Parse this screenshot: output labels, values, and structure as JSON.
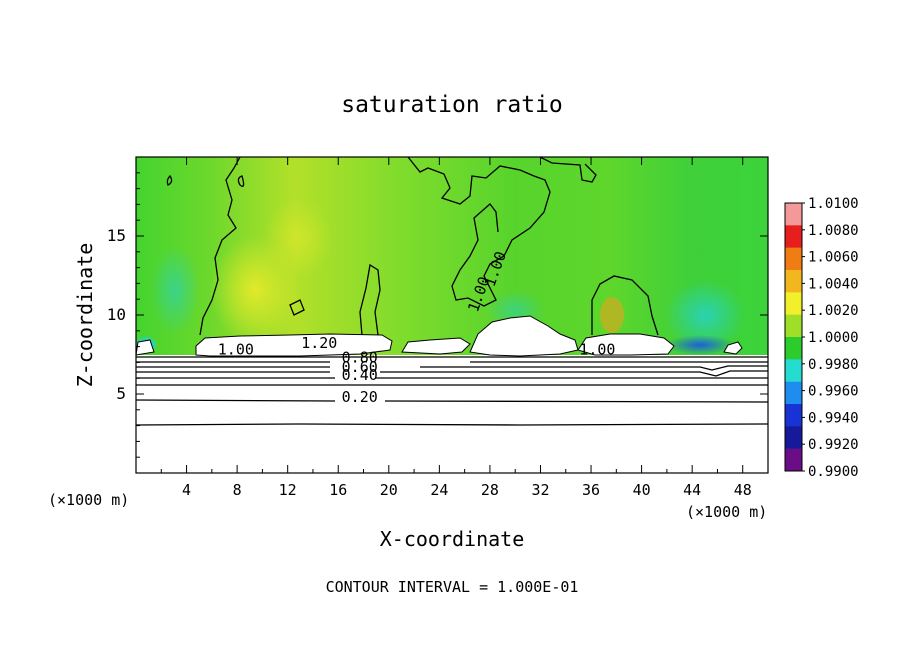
{
  "chart_data": {
    "type": "heatmap",
    "title": "saturation ratio",
    "xlabel": "X-coordinate",
    "ylabel": "Z-coordinate",
    "x_unit": "(×1000 m)",
    "x_unit_right": "(×1000 m)",
    "xlim": [
      0,
      50
    ],
    "ylim": [
      0,
      20
    ],
    "x_ticks": [
      4,
      8,
      12,
      16,
      20,
      24,
      28,
      32,
      36,
      40,
      44,
      48
    ],
    "y_ticks": [
      5,
      10,
      15
    ],
    "colorbar": {
      "labels": [
        "1.0100",
        "1.0080",
        "1.0060",
        "1.0040",
        "1.0020",
        "1.0000",
        "0.9980",
        "0.9960",
        "0.9940",
        "0.9920",
        "0.9900"
      ],
      "colors": [
        "#f4999a",
        "#e61e1e",
        "#f07d14",
        "#f2b71e",
        "#f2f02a",
        "#9fdf28",
        "#2bcc2b",
        "#24dcd0",
        "#1f8df0",
        "#1832d6",
        "#161a9a",
        "#6b0d86"
      ]
    },
    "contour_labels": [
      {
        "text": "1.00",
        "x": 7.9,
        "z": 7.5
      },
      {
        "text": "1.20",
        "x": 14.5,
        "z": 7.9
      },
      {
        "text": "0.80",
        "x": 17.7,
        "z": 7.0
      },
      {
        "text": "0.60",
        "x": 17.7,
        "z": 6.4
      },
      {
        "text": "0.40",
        "x": 17.7,
        "z": 5.9
      },
      {
        "text": "0.20",
        "x": 17.7,
        "z": 4.5
      },
      {
        "text": "1.00",
        "x": 27.5,
        "z": 11.2
      },
      {
        "text": "1.00",
        "x": 28.8,
        "z": 12.8
      },
      {
        "text": "1.00",
        "x": 36.5,
        "z": 7.5
      }
    ],
    "footnote": "CONTOUR INTERVAL = 1.000E-01"
  }
}
